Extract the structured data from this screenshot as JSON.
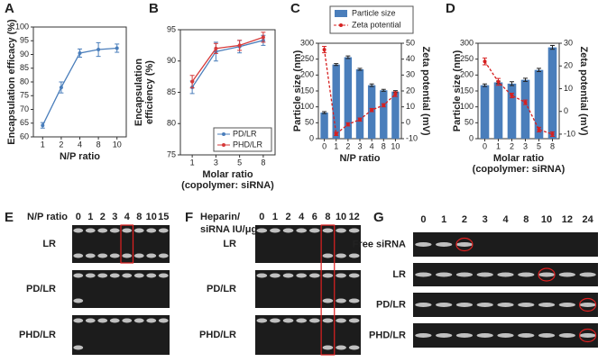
{
  "chart_data": [
    {
      "label": "A",
      "type": "line",
      "categories": [
        "1",
        "2",
        "4",
        "8",
        "10"
      ],
      "values": [
        64.2,
        78,
        90.5,
        91.8,
        92.3
      ],
      "errors": [
        1,
        2,
        1.5,
        2.5,
        1.5
      ],
      "color": "#4a7ebb",
      "ylim": [
        60,
        100
      ],
      "yticks": [
        60,
        65,
        70,
        75,
        80,
        85,
        90,
        95,
        100
      ],
      "ylabel": [
        "Encapsulation efficacy (%)"
      ],
      "xlabel": [
        "N/P ratio"
      ]
    },
    {
      "label": "B",
      "type": "line",
      "categories": [
        "1",
        "3",
        "5",
        "8"
      ],
      "series": [
        {
          "name": "PD/LR",
          "color": "#4a7ebb",
          "values": [
            85.8,
            91.5,
            92.3,
            93.3
          ],
          "errors": [
            1,
            1.5,
            1,
            0.8
          ]
        },
        {
          "name": "PHD/LR",
          "color": "#d63a3a",
          "values": [
            86.7,
            92,
            92.5,
            93.8
          ],
          "errors": [
            1,
            0.8,
            0.8,
            0.8
          ]
        }
      ],
      "ylim": [
        75,
        95
      ],
      "yticks": [
        75,
        80,
        85,
        90,
        95
      ],
      "ylabel": [
        "Encapsulation",
        "efficiency (%)"
      ],
      "xlabel": [
        "Molar ratio",
        "(copolymer: siRNA)"
      ],
      "legend": "lower right"
    },
    {
      "label": "C",
      "type": "combo",
      "categories": [
        "0",
        "1",
        "2",
        "3",
        "4",
        "8",
        "10"
      ],
      "series": [
        {
          "name": "Particle size",
          "type": "bar",
          "color": "#4a7ebb",
          "values": [
            82,
            233,
            256,
            218,
            168,
            152,
            148
          ],
          "errors": [
            3,
            3,
            4,
            3,
            4,
            3,
            3
          ]
        },
        {
          "name": "Zeta potential",
          "type": "line",
          "axis": "y2",
          "color": "#d62020",
          "values": [
            46,
            -7,
            -1,
            2,
            8,
            11,
            18
          ],
          "errors": [
            2,
            1,
            1,
            1,
            1,
            1,
            1.5
          ]
        }
      ],
      "ylim": [
        0,
        300
      ],
      "yticks": [
        0,
        50,
        100,
        150,
        200,
        250,
        300
      ],
      "y2lim": [
        -10,
        50
      ],
      "y2ticks": [
        -10,
        0,
        10,
        20,
        30,
        40,
        50
      ],
      "ylabel": [
        "Particle size (nm)"
      ],
      "y2label": [
        "Zeta potential (mV)"
      ],
      "xlabel": [
        "N/P ratio"
      ],
      "legend": "top"
    },
    {
      "label": "D",
      "type": "combo",
      "categories": [
        "0",
        "1",
        "2",
        "3",
        "5",
        "8"
      ],
      "series": [
        {
          "name": "Particle size",
          "type": "bar",
          "color": "#4a7ebb",
          "values": [
            168,
            177,
            173,
            185,
            216,
            287
          ],
          "errors": [
            4,
            4,
            6,
            5,
            5,
            6
          ]
        },
        {
          "name": "Zeta potential",
          "type": "line",
          "axis": "y2",
          "color": "#d62020",
          "values": [
            22,
            13,
            7,
            4,
            -8,
            -10
          ],
          "errors": [
            1.5,
            1.5,
            1,
            1,
            1,
            1
          ]
        }
      ],
      "ylim": [
        0,
        300
      ],
      "yticks": [
        0,
        50,
        100,
        150,
        200,
        250,
        300
      ],
      "y2lim": [
        -12,
        30
      ],
      "y2ticks": [
        -10,
        0,
        10,
        20,
        30
      ],
      "ylabel": [
        "Particle size (nm)"
      ],
      "y2label": [
        "Zeta potential (mV)"
      ],
      "xlabel": [
        "Molar ratio",
        "(copolymer: siRNA)"
      ]
    }
  ],
  "gels": [
    {
      "label": "E",
      "title": [
        "N/P ratio"
      ],
      "lanes": [
        "0",
        "1",
        "2",
        "3",
        "4",
        "8",
        "10",
        "15"
      ],
      "rows": [
        "LR",
        "PD/LR",
        "PHD/LR"
      ]
    },
    {
      "label": "F",
      "title": [
        "Heparin/",
        "siRNA IU/μg"
      ],
      "lanes": [
        "0",
        "1",
        "2",
        "4",
        "6",
        "8",
        "10",
        "12"
      ],
      "rows": [
        "LR",
        "PD/LR",
        "PHD/LR"
      ]
    },
    {
      "label": "G",
      "lanes": [
        "0",
        "1",
        "2",
        "3",
        "4",
        "8",
        "10",
        "12",
        "24"
      ],
      "rows": [
        "Free siRNA",
        "LR",
        "PD/LR",
        "PHD/LR"
      ]
    }
  ]
}
